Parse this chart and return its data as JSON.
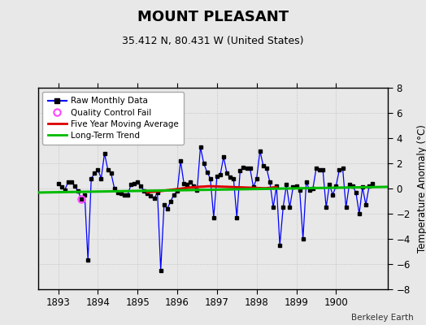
{
  "title": "MOUNT PLEASANT",
  "subtitle": "35.412 N, 80.431 W (United States)",
  "ylabel": "Temperature Anomaly (°C)",
  "credit": "Berkeley Earth",
  "ylim": [
    -8,
    8
  ],
  "xlim": [
    1892.5,
    1901.3
  ],
  "xticks": [
    1893,
    1894,
    1895,
    1896,
    1897,
    1898,
    1899,
    1900
  ],
  "yticks": [
    -8,
    -6,
    -4,
    -2,
    0,
    2,
    4,
    6,
    8
  ],
  "fig_color": "#e8e8e8",
  "plot_color": "#e8e8e8",
  "raw_color": "#0000ff",
  "raw_marker_color": "#000000",
  "ma_color": "#dd0000",
  "trend_color": "#00bb00",
  "qc_fail_x": 1893.583,
  "qc_fail_y": -0.85,
  "raw_data": [
    [
      1893.0,
      0.4
    ],
    [
      1893.083,
      0.1
    ],
    [
      1893.167,
      -0.1
    ],
    [
      1893.25,
      0.5
    ],
    [
      1893.333,
      0.5
    ],
    [
      1893.417,
      0.2
    ],
    [
      1893.5,
      -0.2
    ],
    [
      1893.583,
      -0.85
    ],
    [
      1893.667,
      -0.5
    ],
    [
      1893.75,
      -5.7
    ],
    [
      1893.833,
      0.8
    ],
    [
      1893.917,
      1.2
    ],
    [
      1894.0,
      1.5
    ],
    [
      1894.083,
      0.8
    ],
    [
      1894.167,
      2.8
    ],
    [
      1894.25,
      1.5
    ],
    [
      1894.333,
      1.2
    ],
    [
      1894.417,
      0.0
    ],
    [
      1894.5,
      -0.3
    ],
    [
      1894.583,
      -0.4
    ],
    [
      1894.667,
      -0.5
    ],
    [
      1894.75,
      -0.5
    ],
    [
      1894.833,
      0.3
    ],
    [
      1894.917,
      0.4
    ],
    [
      1895.0,
      0.5
    ],
    [
      1895.083,
      0.2
    ],
    [
      1895.167,
      -0.2
    ],
    [
      1895.25,
      -0.4
    ],
    [
      1895.333,
      -0.6
    ],
    [
      1895.417,
      -0.8
    ],
    [
      1895.5,
      -0.3
    ],
    [
      1895.583,
      -6.5
    ],
    [
      1895.667,
      -1.3
    ],
    [
      1895.75,
      -1.6
    ],
    [
      1895.833,
      -1.0
    ],
    [
      1895.917,
      -0.5
    ],
    [
      1896.0,
      -0.2
    ],
    [
      1896.083,
      2.2
    ],
    [
      1896.167,
      0.4
    ],
    [
      1896.25,
      0.3
    ],
    [
      1896.333,
      0.5
    ],
    [
      1896.417,
      0.2
    ],
    [
      1896.5,
      -0.1
    ],
    [
      1896.583,
      3.3
    ],
    [
      1896.667,
      2.0
    ],
    [
      1896.75,
      1.3
    ],
    [
      1896.833,
      0.8
    ],
    [
      1896.917,
      -2.3
    ],
    [
      1897.0,
      1.0
    ],
    [
      1897.083,
      1.1
    ],
    [
      1897.167,
      2.5
    ],
    [
      1897.25,
      1.2
    ],
    [
      1897.333,
      0.9
    ],
    [
      1897.417,
      0.8
    ],
    [
      1897.5,
      -2.3
    ],
    [
      1897.583,
      1.4
    ],
    [
      1897.667,
      1.7
    ],
    [
      1897.75,
      1.6
    ],
    [
      1897.833,
      1.6
    ],
    [
      1897.917,
      0.1
    ],
    [
      1898.0,
      0.8
    ],
    [
      1898.083,
      3.0
    ],
    [
      1898.167,
      1.8
    ],
    [
      1898.25,
      1.6
    ],
    [
      1898.333,
      0.5
    ],
    [
      1898.417,
      -1.5
    ],
    [
      1898.5,
      0.2
    ],
    [
      1898.583,
      -4.5
    ],
    [
      1898.667,
      -1.5
    ],
    [
      1898.75,
      0.3
    ],
    [
      1898.833,
      -1.5
    ],
    [
      1898.917,
      0.1
    ],
    [
      1899.0,
      0.2
    ],
    [
      1899.083,
      -0.1
    ],
    [
      1899.167,
      -4.0
    ],
    [
      1899.25,
      0.5
    ],
    [
      1899.333,
      -0.1
    ],
    [
      1899.417,
      0.0
    ],
    [
      1899.5,
      1.6
    ],
    [
      1899.583,
      1.5
    ],
    [
      1899.667,
      1.5
    ],
    [
      1899.75,
      -1.5
    ],
    [
      1899.833,
      0.3
    ],
    [
      1899.917,
      -0.5
    ],
    [
      1900.0,
      0.2
    ],
    [
      1900.083,
      1.5
    ],
    [
      1900.167,
      1.6
    ],
    [
      1900.25,
      -1.5
    ],
    [
      1900.333,
      0.3
    ],
    [
      1900.417,
      0.2
    ],
    [
      1900.5,
      -0.3
    ],
    [
      1900.583,
      -2.0
    ],
    [
      1900.667,
      0.1
    ],
    [
      1900.75,
      -1.3
    ],
    [
      1900.833,
      0.2
    ],
    [
      1900.917,
      0.4
    ]
  ],
  "ma_data": [
    [
      1895.25,
      -0.3
    ],
    [
      1895.333,
      -0.27
    ],
    [
      1895.417,
      -0.25
    ],
    [
      1895.5,
      -0.22
    ],
    [
      1895.583,
      -0.2
    ],
    [
      1895.667,
      -0.17
    ],
    [
      1895.75,
      -0.14
    ],
    [
      1895.833,
      -0.11
    ],
    [
      1895.917,
      -0.08
    ],
    [
      1896.0,
      -0.05
    ],
    [
      1896.083,
      -0.02
    ],
    [
      1896.167,
      0.02
    ],
    [
      1896.25,
      0.05
    ],
    [
      1896.333,
      0.08
    ],
    [
      1896.417,
      0.1
    ],
    [
      1896.5,
      0.12
    ],
    [
      1896.583,
      0.14
    ],
    [
      1896.667,
      0.15
    ],
    [
      1896.75,
      0.17
    ],
    [
      1896.833,
      0.18
    ],
    [
      1896.917,
      0.17
    ],
    [
      1897.0,
      0.16
    ],
    [
      1897.083,
      0.15
    ],
    [
      1897.167,
      0.14
    ],
    [
      1897.25,
      0.13
    ],
    [
      1897.333,
      0.12
    ],
    [
      1897.417,
      0.11
    ],
    [
      1897.5,
      0.1
    ],
    [
      1897.583,
      0.09
    ],
    [
      1897.667,
      0.08
    ],
    [
      1897.75,
      0.07
    ],
    [
      1897.833,
      0.06
    ],
    [
      1897.917,
      0.05
    ],
    [
      1898.0,
      0.04
    ],
    [
      1898.083,
      0.03
    ],
    [
      1898.167,
      0.02
    ],
    [
      1898.25,
      0.02
    ],
    [
      1898.333,
      0.05
    ],
    [
      1898.417,
      0.08
    ],
    [
      1898.5,
      0.1
    ]
  ],
  "trend_x": [
    1892.5,
    1901.3
  ],
  "trend_y": [
    -0.32,
    0.13
  ]
}
